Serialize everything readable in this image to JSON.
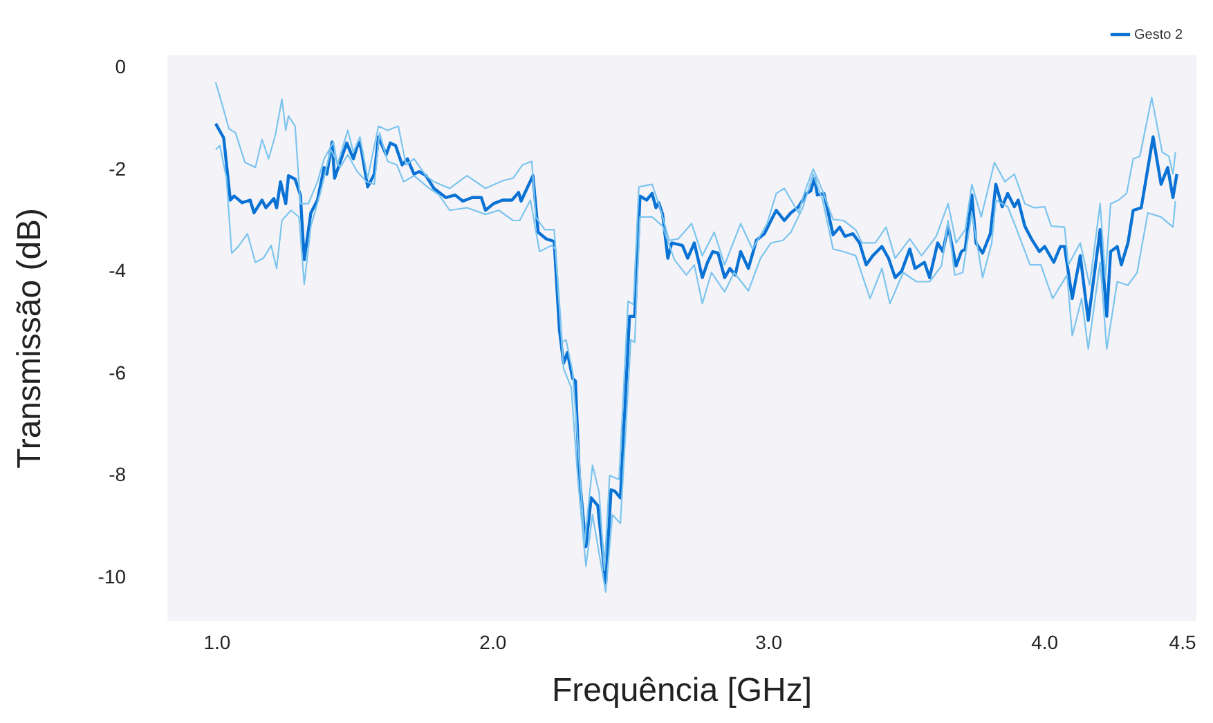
{
  "chart_data": {
    "type": "line",
    "xlabel": "Frequência [GHz]",
    "ylabel": "Transmissão (dB)",
    "legend": "top right",
    "marker": "none",
    "line_style": "solid",
    "xlim": [
      0.82,
      4.55
    ],
    "ylim": [
      -10.85,
      0.25
    ],
    "xticks": [
      {
        "value": 1,
        "label": "1.0"
      },
      {
        "value": 2,
        "label": "2.0"
      },
      {
        "value": 3,
        "label": "3.0"
      },
      {
        "value": 4,
        "label": "4.0"
      },
      4.5
    ],
    "yticks": [
      0,
      -2,
      -4,
      -6,
      -8,
      -10
    ],
    "series": [
      {
        "color": "#7cc4ee",
        "x": [
          0.995,
          1.014,
          1.043,
          1.067,
          1.101,
          1.139,
          1.163,
          1.187,
          1.211,
          1.235,
          1.249,
          1.259,
          1.283,
          1.302,
          1.331,
          1.364,
          1.388,
          1.422,
          1.436,
          1.474,
          1.494,
          1.518,
          1.546,
          1.585,
          1.618,
          1.657,
          1.685,
          1.714,
          1.757,
          1.786,
          1.843,
          1.906,
          1.973,
          2.035,
          2.073,
          2.107,
          2.141,
          2.155,
          2.188,
          2.222,
          2.251,
          2.265,
          2.289,
          2.313,
          2.332,
          2.361,
          2.385,
          2.404,
          2.423,
          2.457,
          2.49,
          2.509,
          2.529,
          2.577,
          2.601,
          2.639,
          2.672,
          2.72,
          2.759,
          2.802,
          2.84,
          2.898,
          2.941,
          2.994,
          3.027,
          3.056,
          3.108,
          3.128,
          3.161,
          3.195,
          3.233,
          3.271,
          3.315,
          3.338,
          3.386,
          3.425,
          3.458,
          3.511,
          3.554,
          3.607,
          3.65,
          3.679,
          3.712,
          3.736,
          3.77,
          3.818,
          3.856,
          3.89,
          3.928,
          3.962,
          4.0,
          4.024,
          4.072,
          4.086,
          4.129,
          4.163,
          4.201,
          4.22,
          4.239,
          4.268,
          4.297,
          4.321,
          4.345,
          4.388,
          4.426,
          4.45,
          4.465,
          4.474
        ],
        "values": [
          -0.28,
          -0.63,
          -1.19,
          -1.27,
          -1.85,
          -1.95,
          -1.4,
          -1.78,
          -1.32,
          -0.61,
          -1.22,
          -0.94,
          -1.14,
          -2.66,
          -2.66,
          -2.23,
          -1.78,
          -1.45,
          -1.9,
          -1.22,
          -1.65,
          -1.35,
          -2.16,
          -1.14,
          -1.22,
          -1.14,
          -1.9,
          -1.78,
          -2.11,
          -2.23,
          -2.36,
          -2.11,
          -2.36,
          -2.21,
          -2.16,
          -1.9,
          -1.83,
          -2.92,
          -3.17,
          -3.17,
          -5.38,
          -5.33,
          -5.96,
          -7.74,
          -9.34,
          -7.79,
          -8.32,
          -9.85,
          -7.99,
          -8.07,
          -4.57,
          -4.64,
          -2.33,
          -2.28,
          -2.66,
          -3.38,
          -3.35,
          -3.05,
          -3.68,
          -3.22,
          -3.86,
          -3.05,
          -3.55,
          -3.05,
          -2.46,
          -2.36,
          -2.84,
          -2.46,
          -1.98,
          -2.41,
          -2.97,
          -2.99,
          -3.17,
          -3.43,
          -3.43,
          -3.12,
          -3.73,
          -3.35,
          -3.68,
          -3.3,
          -2.66,
          -3.43,
          -3.17,
          -2.28,
          -2.92,
          -1.85,
          -2.23,
          -2.08,
          -2.66,
          -2.74,
          -2.72,
          -3.1,
          -3.12,
          -3.86,
          -3.43,
          -4.26,
          -2.66,
          -4.11,
          -2.66,
          -2.59,
          -2.46,
          -1.78,
          -1.73,
          -0.58,
          -1.65,
          -1.73,
          -2.08,
          -1.65
        ]
      },
      {
        "color": "#7cc4ee",
        "x": [
          0.995,
          1.01,
          1.034,
          1.053,
          1.077,
          1.11,
          1.139,
          1.168,
          1.196,
          1.216,
          1.235,
          1.268,
          1.297,
          1.316,
          1.34,
          1.374,
          1.412,
          1.446,
          1.474,
          1.508,
          1.542,
          1.57,
          1.589,
          1.618,
          1.652,
          1.676,
          1.714,
          1.762,
          1.805,
          1.843,
          1.906,
          1.973,
          2.021,
          2.073,
          2.097,
          2.136,
          2.169,
          2.212,
          2.227,
          2.256,
          2.284,
          2.308,
          2.337,
          2.361,
          2.409,
          2.433,
          2.462,
          2.5,
          2.514,
          2.533,
          2.577,
          2.615,
          2.658,
          2.701,
          2.73,
          2.759,
          2.792,
          2.84,
          2.874,
          2.926,
          2.97,
          3.008,
          3.051,
          3.08,
          3.123,
          3.161,
          3.195,
          3.233,
          3.271,
          3.315,
          3.367,
          3.41,
          3.439,
          3.487,
          3.535,
          3.583,
          3.626,
          3.65,
          3.674,
          3.703,
          3.736,
          3.775,
          3.808,
          3.823,
          3.866,
          3.894,
          3.947,
          3.986,
          4.029,
          4.081,
          4.1,
          4.134,
          4.158,
          4.201,
          4.225,
          4.263,
          4.302,
          4.335,
          4.374,
          4.422,
          4.465,
          4.474
        ],
        "values": [
          -1.6,
          -1.52,
          -2.16,
          -3.63,
          -3.5,
          -3.25,
          -3.81,
          -3.73,
          -3.48,
          -3.93,
          -2.99,
          -2.79,
          -2.92,
          -4.24,
          -3.1,
          -2.46,
          -1.6,
          -1.95,
          -1.7,
          -2.03,
          -2.23,
          -2.28,
          -1.27,
          -1.83,
          -1.9,
          -2.23,
          -2.11,
          -2.33,
          -2.49,
          -2.79,
          -2.74,
          -2.87,
          -2.79,
          -2.99,
          -2.99,
          -2.59,
          -3.6,
          -3.48,
          -3.55,
          -5.89,
          -6.27,
          -8.07,
          -9.77,
          -8.76,
          -10.28,
          -8.76,
          -8.93,
          -5.33,
          -5.38,
          -2.92,
          -2.92,
          -3.1,
          -3.76,
          -4.06,
          -3.86,
          -4.62,
          -4.01,
          -4.39,
          -4.01,
          -4.37,
          -3.73,
          -3.43,
          -3.38,
          -3.22,
          -2.74,
          -2.08,
          -2.59,
          -3.55,
          -3.6,
          -3.68,
          -4.52,
          -3.93,
          -4.62,
          -4.01,
          -4.19,
          -4.19,
          -3.88,
          -2.99,
          -4.06,
          -4.01,
          -2.84,
          -4.11,
          -3.43,
          -2.59,
          -2.72,
          -3.1,
          -3.86,
          -3.86,
          -4.52,
          -4.06,
          -5.25,
          -4.52,
          -5.51,
          -3.81,
          -5.51,
          -4.19,
          -4.26,
          -4.01,
          -2.84,
          -2.92,
          -3.12,
          -2.61
        ]
      },
      {
        "name": "Gesto 2",
        "color": "#0a72d4",
        "x": [
          0.995,
          1.024,
          1.048,
          1.062,
          1.091,
          1.12,
          1.134,
          1.163,
          1.177,
          1.206,
          1.216,
          1.23,
          1.249,
          1.259,
          1.283,
          1.302,
          1.316,
          1.34,
          1.364,
          1.388,
          1.398,
          1.417,
          1.426,
          1.47,
          1.494,
          1.513,
          1.522,
          1.546,
          1.57,
          1.585,
          1.613,
          1.628,
          1.647,
          1.671,
          1.69,
          1.714,
          1.733,
          1.757,
          1.786,
          1.829,
          1.863,
          1.891,
          1.925,
          1.958,
          1.973,
          2.002,
          2.035,
          2.069,
          2.093,
          2.102,
          2.145,
          2.164,
          2.193,
          2.222,
          2.241,
          2.256,
          2.27,
          2.289,
          2.299,
          2.313,
          2.337,
          2.356,
          2.38,
          2.409,
          2.428,
          2.442,
          2.462,
          2.495,
          2.514,
          2.533,
          2.557,
          2.577,
          2.591,
          2.601,
          2.615,
          2.634,
          2.648,
          2.687,
          2.706,
          2.73,
          2.759,
          2.778,
          2.797,
          2.816,
          2.84,
          2.859,
          2.878,
          2.898,
          2.926,
          2.955,
          2.984,
          3.008,
          3.027,
          3.056,
          3.08,
          3.108,
          3.137,
          3.152,
          3.166,
          3.176,
          3.2,
          3.233,
          3.257,
          3.276,
          3.305,
          3.329,
          3.353,
          3.377,
          3.41,
          3.434,
          3.458,
          3.482,
          3.511,
          3.53,
          3.564,
          3.583,
          3.612,
          3.631,
          3.65,
          3.679,
          3.698,
          3.712,
          3.736,
          3.751,
          3.775,
          3.803,
          3.823,
          3.846,
          3.866,
          3.89,
          3.904,
          3.928,
          3.952,
          3.981,
          4.0,
          4.033,
          4.057,
          4.072,
          4.1,
          4.129,
          4.158,
          4.201,
          4.225,
          4.239,
          4.263,
          4.278,
          4.302,
          4.321,
          4.35,
          4.393,
          4.422,
          4.446,
          4.465,
          4.479
        ],
        "values": [
          -1.09,
          -1.37,
          -2.59,
          -2.51,
          -2.64,
          -2.59,
          -2.84,
          -2.59,
          -2.74,
          -2.56,
          -2.74,
          -2.23,
          -2.66,
          -2.11,
          -2.18,
          -2.49,
          -3.76,
          -2.84,
          -2.59,
          -1.95,
          -2.08,
          -1.45,
          -2.16,
          -1.47,
          -1.78,
          -1.45,
          -1.57,
          -2.33,
          -2.08,
          -1.35,
          -1.7,
          -1.47,
          -1.52,
          -1.9,
          -1.78,
          -2.08,
          -2.03,
          -2.11,
          -2.36,
          -2.54,
          -2.49,
          -2.61,
          -2.54,
          -2.54,
          -2.79,
          -2.66,
          -2.59,
          -2.59,
          -2.44,
          -2.61,
          -2.11,
          -3.22,
          -3.35,
          -3.4,
          -5.13,
          -5.79,
          -5.58,
          -6.09,
          -6.14,
          -7.99,
          -9.39,
          -8.43,
          -8.58,
          -10.1,
          -8.27,
          -8.3,
          -8.43,
          -4.87,
          -4.87,
          -2.51,
          -2.59,
          -2.46,
          -2.74,
          -2.64,
          -2.87,
          -3.73,
          -3.43,
          -3.48,
          -3.73,
          -3.43,
          -4.11,
          -3.81,
          -3.6,
          -3.63,
          -4.11,
          -3.93,
          -4.06,
          -3.6,
          -3.93,
          -3.38,
          -3.25,
          -2.99,
          -2.79,
          -2.99,
          -2.84,
          -2.72,
          -2.46,
          -2.41,
          -2.16,
          -2.49,
          -2.46,
          -3.27,
          -3.12,
          -3.3,
          -3.25,
          -3.43,
          -3.86,
          -3.68,
          -3.5,
          -3.73,
          -4.11,
          -3.98,
          -3.55,
          -3.93,
          -3.81,
          -4.11,
          -3.43,
          -3.6,
          -3.1,
          -3.88,
          -3.6,
          -3.55,
          -2.49,
          -3.43,
          -3.63,
          -3.25,
          -2.28,
          -2.72,
          -2.46,
          -2.72,
          -2.59,
          -3.1,
          -3.35,
          -3.6,
          -3.5,
          -3.81,
          -3.5,
          -3.5,
          -4.52,
          -3.68,
          -4.95,
          -3.17,
          -4.87,
          -3.6,
          -3.5,
          -3.86,
          -3.43,
          -2.79,
          -2.74,
          -1.35,
          -2.28,
          -1.95,
          -2.54,
          -2.08
        ]
      }
    ]
  }
}
